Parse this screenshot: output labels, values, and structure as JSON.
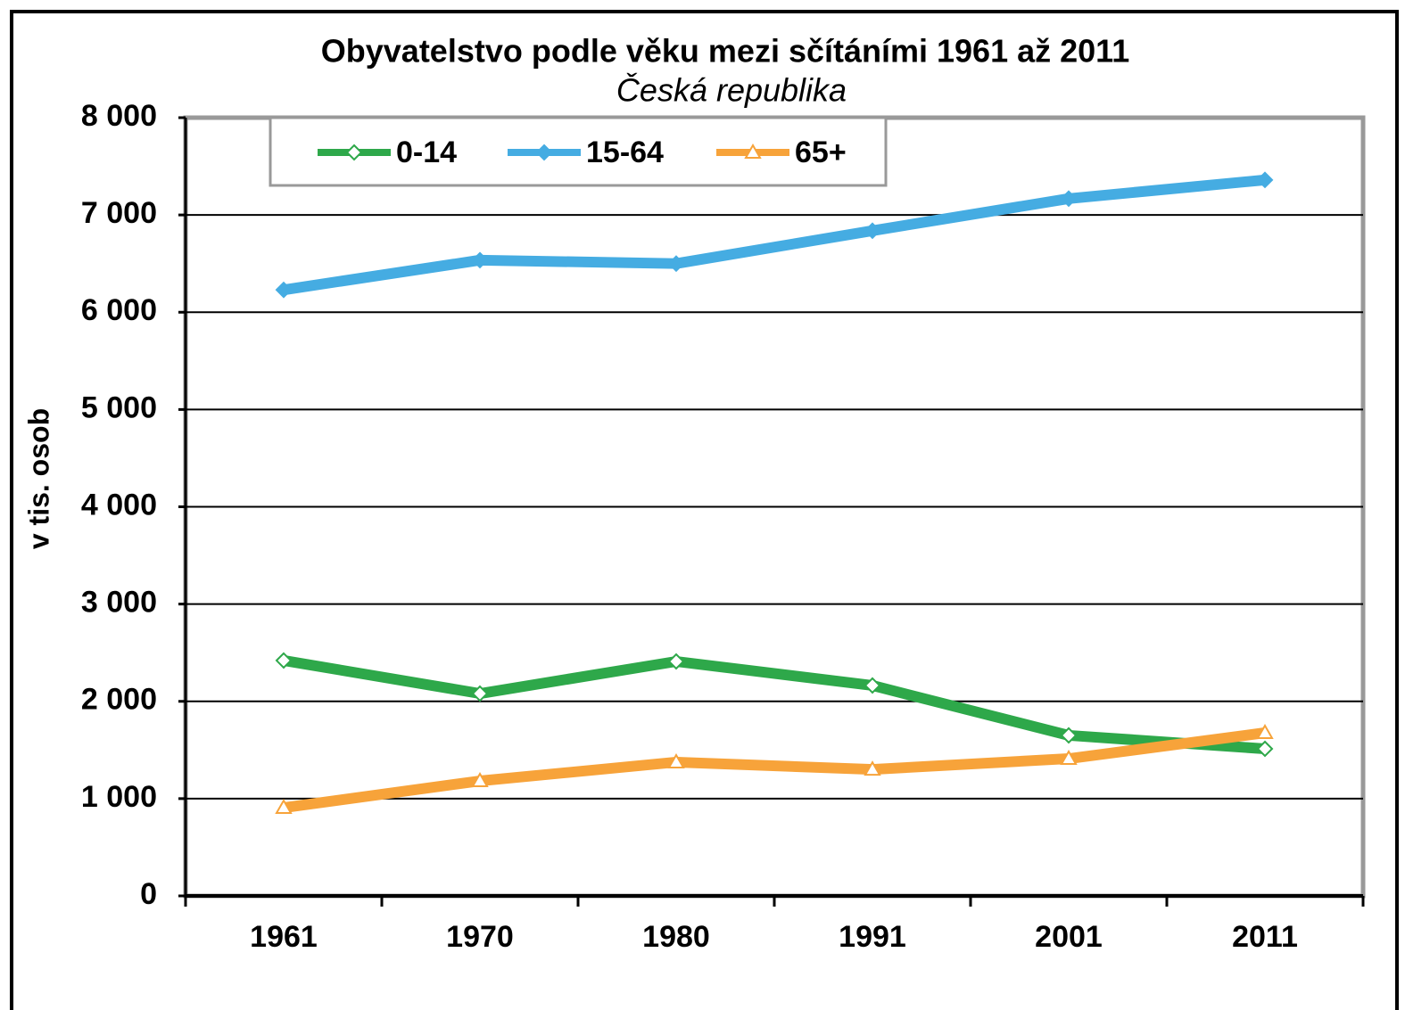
{
  "chart_data": {
    "type": "line",
    "title": "Obyvatelstvo podle věku mezi sčítáními 1961 až 2011",
    "subtitle": "Česká republika",
    "y_label": "v tis. osob",
    "categories": [
      "1961",
      "1970",
      "1980",
      "1991",
      "2001",
      "2011"
    ],
    "series": [
      {
        "name": "0-14",
        "color": "#2ea84a",
        "marker": "diamond-open",
        "values": [
          2420,
          2080,
          2410,
          2163,
          1650,
          1512
        ]
      },
      {
        "name": "15-64",
        "color": "#45ace2",
        "marker": "diamond",
        "values": [
          6230,
          6535,
          6500,
          6838,
          7168,
          7360
        ]
      },
      {
        "name": "65+",
        "color": "#f7a33a",
        "marker": "triangle-open",
        "values": [
          907,
          1182,
          1375,
          1300,
          1411,
          1677
        ]
      }
    ],
    "ylim": [
      0,
      8000
    ],
    "yticks": [
      0,
      {
        "value": 1000,
        "label": "1 000"
      },
      {
        "value": 2000,
        "label": "2 000"
      },
      {
        "value": 3000,
        "label": "3 000"
      },
      {
        "value": 4000,
        "label": "4 000"
      },
      {
        "value": 5000,
        "label": "5 000"
      },
      {
        "value": 6000,
        "label": "6 000"
      },
      {
        "value": 7000,
        "label": "7 000"
      },
      {
        "value": 8000,
        "label": "8 000"
      }
    ],
    "grid": true,
    "legend": "top-left"
  }
}
